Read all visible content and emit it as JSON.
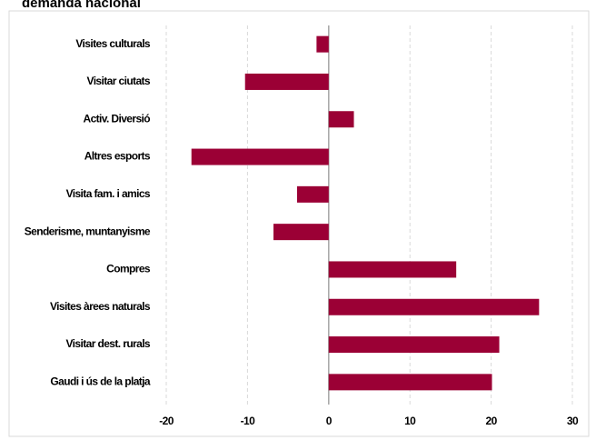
{
  "chart_data": {
    "type": "hbar",
    "title": "demanda nacional",
    "categories": [
      "Visites culturals",
      "Visitar ciutats",
      "Activ. Diversió",
      "Altres esports",
      "Visita fam. i amics",
      "Senderisme, muntanyisme",
      "Compres",
      "Visites àrees naturals",
      "Visitar dest. rurals",
      "Gaudi i ús de la platja"
    ],
    "values": [
      -1.5,
      -10.3,
      3.1,
      -16.9,
      -3.9,
      -6.8,
      15.7,
      25.9,
      21,
      20.1
    ],
    "color": "#9b0035",
    "xlim": [
      -20,
      30
    ],
    "xticks": [
      -20,
      -10,
      0,
      10,
      20,
      30
    ],
    "grid": true
  }
}
